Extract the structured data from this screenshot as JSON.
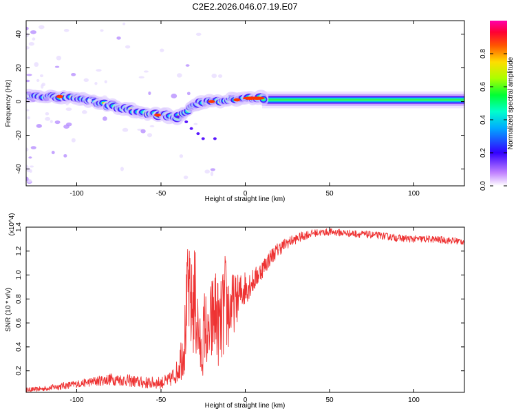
{
  "figure": {
    "title": "C2E2.2026.046.07.19.E07"
  },
  "chart_data": [
    {
      "type": "heatmap",
      "title": "",
      "xlabel": "Height of straight line (km)",
      "ylabel": "Frequency (Hz)",
      "xlim": [
        -130,
        130
      ],
      "ylim": [
        -50,
        48
      ],
      "xticks": [
        -100,
        -50,
        0,
        50,
        100
      ],
      "yticks": [
        -40,
        -20,
        0,
        20,
        40
      ],
      "xtick_labels": [
        "-100",
        "-50",
        "0",
        "50",
        "100"
      ],
      "ytick_labels": [
        "-40",
        "-20",
        "0",
        "20",
        "40"
      ],
      "colorbar": {
        "label": "Normalized spectral amplitude",
        "range": [
          0,
          1
        ],
        "ticks": [
          0.0,
          0.2,
          0.4,
          0.6,
          0.8
        ],
        "tick_labels": [
          "0.0",
          "0.2",
          "0.4",
          "0.6",
          "0.8"
        ],
        "colormap": "rainbow (white-violet-blue-cyan-green-yellow-red-magenta)"
      },
      "ridge": {
        "x": [
          -130,
          -110,
          -100,
          -90,
          -80,
          -70,
          -60,
          -50,
          -40,
          -35,
          -30,
          -25,
          -20,
          -10,
          0,
          10,
          20,
          50,
          80,
          110,
          130
        ],
        "frequency": [
          3,
          3,
          2,
          0,
          -2,
          -5,
          -7,
          -8,
          -9,
          -6,
          -2,
          -1,
          0,
          1,
          2,
          2,
          1,
          1,
          1,
          1,
          1
        ]
      },
      "band_halfwidth_hz": 5
    },
    {
      "type": "line",
      "title": "",
      "xlabel": "Height of straight line (km)",
      "ylabel": "SNR (10 * v/v)",
      "y_multiplier": "(x10^4)",
      "xlim": [
        -130,
        130
      ],
      "ylim": [
        0.02,
        1.4
      ],
      "xticks": [
        -100,
        -50,
        0,
        50,
        100
      ],
      "yticks": [
        0.2,
        0.4,
        0.6,
        0.8,
        1.0,
        1.2,
        1.4
      ],
      "xtick_labels": [
        "-100",
        "-50",
        "0",
        "50",
        "100"
      ],
      "ytick_labels": [
        "0.2",
        "0.4",
        "0.6",
        "0.8",
        "1.0",
        "1.2",
        "1.4"
      ],
      "color": "#ee3333",
      "series": [
        {
          "x": [
            -130,
            -120,
            -110,
            -100,
            -90,
            -80,
            -70,
            -60,
            -50,
            -45,
            -40,
            -36,
            -34,
            -32,
            -30,
            -28,
            -26,
            -24,
            -22,
            -20,
            -18,
            -15,
            -12,
            -10,
            -5,
            0,
            5,
            10,
            15,
            20,
            25,
            30,
            35,
            40,
            50,
            60,
            70,
            80,
            90,
            100,
            110,
            120,
            130
          ],
          "values": [
            0.04,
            0.05,
            0.07,
            0.09,
            0.11,
            0.13,
            0.12,
            0.1,
            0.1,
            0.12,
            0.2,
            0.45,
            0.9,
            0.7,
            0.8,
            0.55,
            0.3,
            0.6,
            0.45,
            0.6,
            0.7,
            0.55,
            0.75,
            0.7,
            0.8,
            0.9,
            0.95,
            1.05,
            1.15,
            1.22,
            1.27,
            1.3,
            1.33,
            1.35,
            1.36,
            1.35,
            1.34,
            1.33,
            1.31,
            1.3,
            1.3,
            1.29,
            1.28
          ],
          "noise": [
            0.02,
            0.02,
            0.03,
            0.03,
            0.04,
            0.05,
            0.05,
            0.05,
            0.05,
            0.06,
            0.1,
            0.3,
            0.4,
            0.4,
            0.5,
            0.35,
            0.2,
            0.35,
            0.25,
            0.4,
            0.4,
            0.35,
            0.45,
            0.35,
            0.2,
            0.15,
            0.1,
            0.08,
            0.07,
            0.06,
            0.05,
            0.04,
            0.04,
            0.03,
            0.03,
            0.03,
            0.03,
            0.03,
            0.03,
            0.03,
            0.03,
            0.03,
            0.03
          ]
        }
      ]
    }
  ]
}
